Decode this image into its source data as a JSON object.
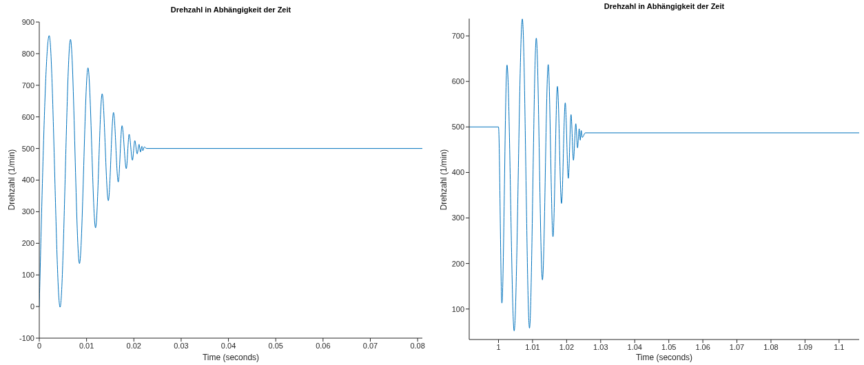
{
  "chart_data": [
    {
      "type": "line",
      "title": "Drehzahl in Abhängigkeit der Zeit",
      "xlabel": "Time (seconds)",
      "ylabel": "Drehzahl (1/min)",
      "x": [
        0,
        0.0021,
        0.0044,
        0.0066,
        0.0085,
        0.0103,
        0.0119,
        0.0133,
        0.0146,
        0.0157,
        0.0167,
        0.0175,
        0.0184,
        0.019,
        0.0197,
        0.0202,
        0.0207,
        0.0211,
        0.0214,
        0.0217,
        0.0219,
        0.0222,
        0.0227,
        0.081
      ],
      "series": [
        {
          "color": "#0072bd",
          "values": [
            0,
            857,
            -2,
            845,
            136,
            755,
            249,
            673,
            335,
            614,
            394,
            572,
            436,
            545,
            463,
            525,
            483,
            513,
            489,
            507,
            493,
            505,
            500,
            500
          ]
        }
      ],
      "xlim": [
        0,
        0.081
      ],
      "xticks": [
        0,
        0.01,
        0.02,
        0.03,
        0.04,
        0.05,
        0.06,
        0.07,
        0.08
      ],
      "ylim": [
        -100,
        900
      ],
      "yticks": [
        -100,
        0,
        100,
        200,
        300,
        400,
        500,
        600,
        700,
        800,
        900
      ]
    },
    {
      "type": "line",
      "title": "Drehzahl in Abhängigkeit der Zeit",
      "xlabel": "Time (seconds)",
      "ylabel": "Drehzahl (1/min)",
      "x": [
        0.9914,
        1.0,
        1.001,
        1.0025,
        1.0046,
        1.007,
        1.0091,
        1.0111,
        1.0129,
        1.0146,
        1.016,
        1.0173,
        1.0185,
        1.0196,
        1.0205,
        1.0213,
        1.022,
        1.0227,
        1.0232,
        1.0237,
        1.024,
        1.0243,
        1.0246,
        1.0255,
        1.1059
      ],
      "series": [
        {
          "color": "#0072bd",
          "values": [
            500,
            500,
            113,
            636,
            52,
            737,
            58,
            695,
            164,
            637,
            259,
            589,
            332,
            553,
            387,
            527,
            427,
            507,
            454,
            496,
            471,
            492,
            477,
            487,
            487
          ]
        }
      ],
      "xlim": [
        0.9914,
        1.1059
      ],
      "xticks": [
        1,
        1.01,
        1.02,
        1.03,
        1.04,
        1.05,
        1.06,
        1.07,
        1.08,
        1.09,
        1.1
      ],
      "ylim": [
        33,
        738
      ],
      "yticks": [
        100,
        200,
        300,
        400,
        500,
        600,
        700
      ]
    }
  ]
}
